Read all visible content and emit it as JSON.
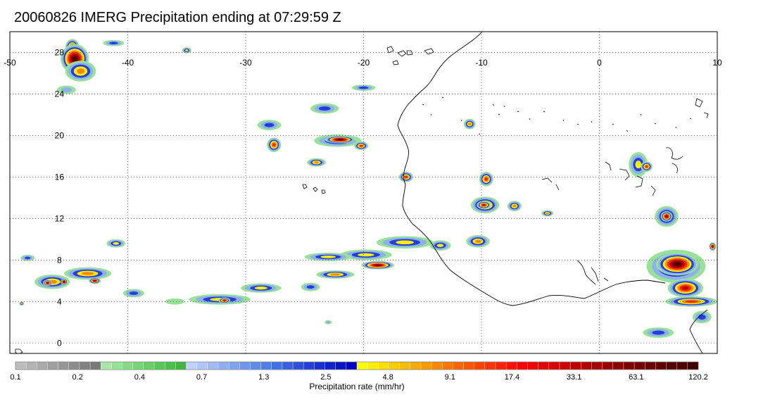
{
  "title": "20060826 IMERG Precipitation ending at 07:29:59 Z",
  "map": {
    "lon_range": [
      -50,
      10
    ],
    "lat_range": [
      -1,
      30
    ],
    "lon_ticks": [
      -50,
      -40,
      -30,
      -20,
      -10,
      0,
      10
    ],
    "lon_tick_labels": [
      "-50",
      "-40",
      "-30",
      "-20",
      "-10",
      "0",
      "10"
    ],
    "lat_ticks": [
      0,
      4,
      8,
      12,
      16,
      20,
      24,
      28
    ],
    "lat_tick_labels": [
      "0",
      "4",
      "8",
      "12",
      "16",
      "20",
      "24",
      "28"
    ],
    "gridlines": "dotted",
    "coastline": "West Africa"
  },
  "precip_features": [
    {
      "lon": -44.7,
      "lat": 28.5,
      "rx": 0.6,
      "ry": 0.8,
      "level": 6
    },
    {
      "lon": -44.5,
      "lat": 27.4,
      "rx": 1.2,
      "ry": 1.4,
      "level": 8
    },
    {
      "lon": -44.0,
      "lat": 26.2,
      "rx": 1.3,
      "ry": 1.0,
      "level": 4
    },
    {
      "lon": -45.2,
      "lat": 24.4,
      "rx": 0.8,
      "ry": 0.4,
      "level": 1
    },
    {
      "lon": -41.2,
      "lat": 28.9,
      "rx": 0.9,
      "ry": 0.3,
      "level": 2
    },
    {
      "lon": -35.0,
      "lat": 28.2,
      "rx": 0.4,
      "ry": 0.3,
      "level": 3
    },
    {
      "lon": -28.0,
      "lat": 21.0,
      "rx": 1.0,
      "ry": 0.5,
      "level": 2
    },
    {
      "lon": -27.6,
      "lat": 19.1,
      "rx": 0.6,
      "ry": 0.7,
      "level": 5
    },
    {
      "lon": -22.2,
      "lat": 19.5,
      "rx": 2.0,
      "ry": 0.6,
      "level": 3
    },
    {
      "lon": -22.0,
      "lat": 19.6,
      "rx": 1.3,
      "ry": 0.35,
      "level": 8
    },
    {
      "lon": -20.2,
      "lat": 19.0,
      "rx": 0.6,
      "ry": 0.4,
      "level": 5
    },
    {
      "lon": -24.0,
      "lat": 17.4,
      "rx": 0.8,
      "ry": 0.4,
      "level": 4
    },
    {
      "lon": -23.3,
      "lat": 22.6,
      "rx": 1.2,
      "ry": 0.5,
      "level": 2
    },
    {
      "lon": -20.0,
      "lat": 24.6,
      "rx": 1.0,
      "ry": 0.3,
      "level": 2
    },
    {
      "lon": -16.4,
      "lat": 16.0,
      "rx": 0.6,
      "ry": 0.5,
      "level": 5
    },
    {
      "lon": -11.0,
      "lat": 21.1,
      "rx": 0.5,
      "ry": 0.5,
      "level": 4
    },
    {
      "lon": -9.6,
      "lat": 15.8,
      "rx": 0.6,
      "ry": 0.7,
      "level": 5
    },
    {
      "lon": -9.7,
      "lat": 13.3,
      "rx": 1.2,
      "ry": 0.8,
      "level": 5
    },
    {
      "lon": -9.8,
      "lat": 13.3,
      "rx": 0.6,
      "ry": 0.4,
      "level": 6
    },
    {
      "lon": -7.2,
      "lat": 13.2,
      "rx": 0.6,
      "ry": 0.5,
      "level": 4
    },
    {
      "lon": -4.4,
      "lat": 12.5,
      "rx": 0.5,
      "ry": 0.3,
      "level": 4
    },
    {
      "lon": 3.3,
      "lat": 17.2,
      "rx": 0.8,
      "ry": 1.2,
      "level": 3
    },
    {
      "lon": 4.0,
      "lat": 17.0,
      "rx": 0.5,
      "ry": 0.5,
      "level": 5
    },
    {
      "lon": 5.7,
      "lat": 12.2,
      "rx": 1.0,
      "ry": 1.0,
      "level": 4
    },
    {
      "lon": 5.7,
      "lat": 12.2,
      "rx": 0.5,
      "ry": 0.5,
      "level": 7
    },
    {
      "lon": 6.5,
      "lat": 7.4,
      "rx": 2.5,
      "ry": 1.6,
      "level": 4
    },
    {
      "lon": 6.6,
      "lat": 7.6,
      "rx": 1.8,
      "ry": 1.1,
      "level": 8
    },
    {
      "lon": 7.3,
      "lat": 5.3,
      "rx": 1.5,
      "ry": 0.9,
      "level": 6
    },
    {
      "lon": 7.8,
      "lat": 4.0,
      "rx": 2.2,
      "ry": 0.5,
      "level": 5
    },
    {
      "lon": 8.7,
      "lat": 2.5,
      "rx": 0.8,
      "ry": 0.6,
      "level": 2
    },
    {
      "lon": -10.3,
      "lat": 9.8,
      "rx": 1.0,
      "ry": 0.6,
      "level": 4
    },
    {
      "lon": -13.5,
      "lat": 9.4,
      "rx": 0.9,
      "ry": 0.5,
      "level": 3
    },
    {
      "lon": -16.5,
      "lat": 9.7,
      "rx": 2.4,
      "ry": 0.6,
      "level": 3
    },
    {
      "lon": -19.8,
      "lat": 8.5,
      "rx": 2.2,
      "ry": 0.5,
      "level": 3
    },
    {
      "lon": -18.8,
      "lat": 7.5,
      "rx": 1.4,
      "ry": 0.4,
      "level": 7
    },
    {
      "lon": -23.0,
      "lat": 8.3,
      "rx": 2.0,
      "ry": 0.4,
      "level": 3
    },
    {
      "lon": -22.4,
      "lat": 6.6,
      "rx": 1.6,
      "ry": 0.4,
      "level": 4
    },
    {
      "lon": -24.5,
      "lat": 5.4,
      "rx": 0.8,
      "ry": 0.4,
      "level": 2
    },
    {
      "lon": -28.7,
      "lat": 5.3,
      "rx": 1.7,
      "ry": 0.45,
      "level": 3
    },
    {
      "lon": -32.2,
      "lat": 4.2,
      "rx": 2.6,
      "ry": 0.5,
      "level": 3
    },
    {
      "lon": -31.8,
      "lat": 4.1,
      "rx": 0.5,
      "ry": 0.3,
      "level": 6
    },
    {
      "lon": -36.0,
      "lat": 4.0,
      "rx": 0.8,
      "ry": 0.3,
      "level": 0
    },
    {
      "lon": -39.5,
      "lat": 4.8,
      "rx": 0.9,
      "ry": 0.4,
      "level": 2
    },
    {
      "lon": -46.4,
      "lat": 5.9,
      "rx": 1.5,
      "ry": 0.7,
      "level": 4
    },
    {
      "lon": -46.8,
      "lat": 5.8,
      "rx": 0.4,
      "ry": 0.3,
      "level": 7
    },
    {
      "lon": -45.4,
      "lat": 5.9,
      "rx": 0.3,
      "ry": 0.3,
      "level": 8
    },
    {
      "lon": -43.4,
      "lat": 6.7,
      "rx": 2.0,
      "ry": 0.6,
      "level": 4
    },
    {
      "lon": -42.8,
      "lat": 6.0,
      "rx": 0.5,
      "ry": 0.3,
      "level": 7
    },
    {
      "lon": -48.5,
      "lat": 8.2,
      "rx": 0.6,
      "ry": 0.3,
      "level": 2
    },
    {
      "lon": -41.0,
      "lat": 9.6,
      "rx": 0.8,
      "ry": 0.4,
      "level": 3
    },
    {
      "lon": -49.0,
      "lat": 3.8,
      "rx": 0.2,
      "ry": 0.2,
      "level": 4
    },
    {
      "lon": -23.0,
      "lat": 2.0,
      "rx": 0.3,
      "ry": 0.2,
      "level": 1
    },
    {
      "lon": 5.0,
      "lat": 1.0,
      "rx": 1.3,
      "ry": 0.5,
      "level": 2
    },
    {
      "lon": 9.6,
      "lat": 9.3,
      "rx": 0.3,
      "ry": 0.4,
      "level": 7
    }
  ],
  "colorbar": {
    "title": "Precipitation rate (mm/hr)",
    "colors": [
      "#bdbdbd",
      "#b3b3b3",
      "#a9a9a9",
      "#a0a0a0",
      "#969696",
      "#8c8c8c",
      "#828282",
      "#787878",
      "#a6e8a6",
      "#96e296",
      "#86dc86",
      "#76d576",
      "#66cf66",
      "#56c856",
      "#4bbf4b",
      "#40b640",
      "#c0d2ff",
      "#b0c6ff",
      "#a0baf8",
      "#90aef5",
      "#80a2f2",
      "#7096ef",
      "#608aec",
      "#507ee9",
      "#4070e5",
      "#3660e0",
      "#2c50db",
      "#2240d6",
      "#1830d1",
      "#0e20cc",
      "#0816c2",
      "#0000c0",
      "#ffff00",
      "#ffee00",
      "#ffdd00",
      "#ffcc00",
      "#ffbb00",
      "#ffaa00",
      "#ff9900",
      "#ff8800",
      "#ff7700",
      "#ff6600",
      "#ff5500",
      "#ff4400",
      "#ff3300",
      "#ff2200",
      "#ff1100",
      "#ff0000",
      "#f20000",
      "#e60000",
      "#d90000",
      "#cc0000",
      "#bf0000",
      "#b30000",
      "#a60000",
      "#990000",
      "#8c0000",
      "#800000",
      "#750000",
      "#6a0000",
      "#600000",
      "#560000",
      "#4c0000",
      "#420000"
    ],
    "labels": [
      "0.1",
      "0.2",
      "0.4",
      "0.7",
      "1.3",
      "2.5",
      "4.8",
      "9.1",
      "17.4",
      "33.1",
      "63.1",
      "120.2"
    ]
  }
}
